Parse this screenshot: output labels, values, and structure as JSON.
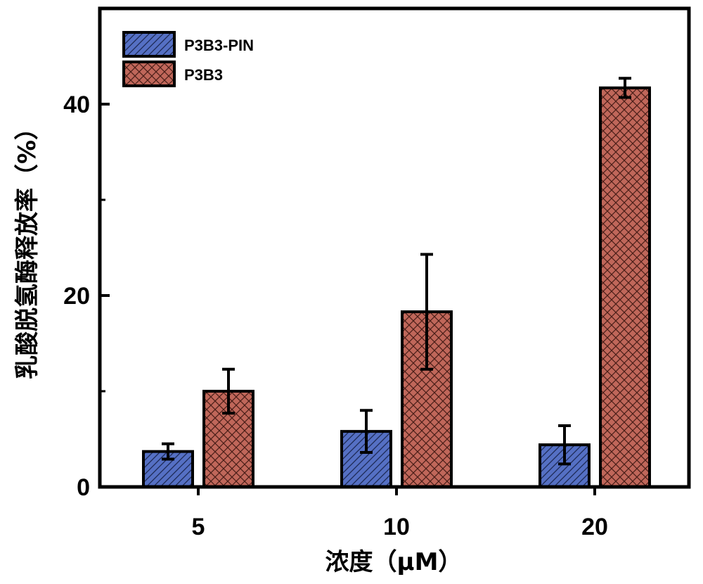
{
  "chart_data": {
    "type": "bar",
    "categories": [
      "5",
      "10",
      "20"
    ],
    "series": [
      {
        "name": "P3B3-PIN",
        "values": [
          3.7,
          5.8,
          4.4
        ],
        "errors": [
          0.8,
          2.2,
          2.0
        ],
        "color": "#5570c4",
        "pattern": "diagonal"
      },
      {
        "name": "P3B3",
        "values": [
          10.0,
          18.3,
          41.7
        ],
        "errors": [
          2.3,
          6.0,
          1.0
        ],
        "color": "#c0675a",
        "pattern": "crosshatch"
      }
    ],
    "xlabel": "浓度（μM）",
    "ylabel": "乳酸脱氢酶释放率（%）",
    "ylim": [
      0,
      50
    ],
    "yticks": [
      0,
      20,
      40
    ],
    "grid": false,
    "legend_position": "top-left"
  }
}
